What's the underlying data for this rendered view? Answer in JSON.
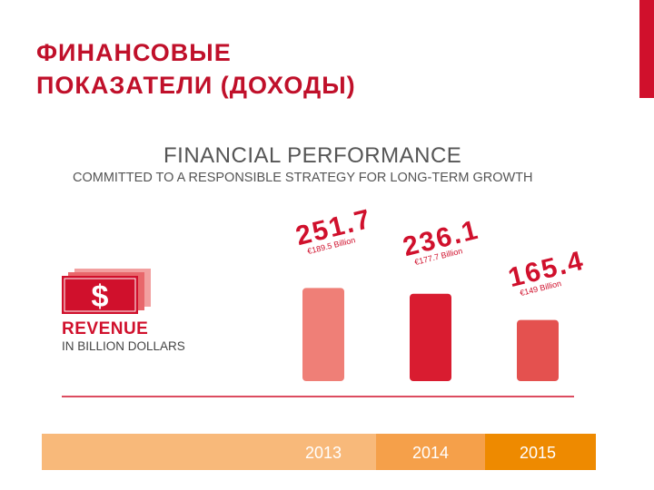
{
  "slide": {
    "title_line1": "ФИНАНСОВЫЕ",
    "title_line2": "ПОКАЗАТЕЛИ (ДОХОДЫ)",
    "accent_color": "#d0102c"
  },
  "infographic": {
    "title": "FINANCIAL PERFORMANCE",
    "subtitle": "COMMITTED TO A RESPONSIBLE STRATEGY FOR LONG-TERM GROWTH",
    "icon": "dollar-bills-icon",
    "metric_label": "REVENUE",
    "unit_label": "IN BILLION DOLLARS"
  },
  "chart_data": {
    "type": "bar",
    "categories": [
      "2013",
      "2014",
      "2015"
    ],
    "values": [
      251.7,
      236.1,
      165.4
    ],
    "value_labels": [
      "251.7",
      "236.1",
      "165.4"
    ],
    "euro_labels": [
      "€189.5 Billion",
      "€177.7 Billion",
      "€149 Billion"
    ],
    "bar_colors": [
      "#ef7f77",
      "#d91c30",
      "#e4514f"
    ],
    "category_band_colors": [
      "#f8b97a",
      "#f5a04a",
      "#ee8a00"
    ],
    "ylim": [
      0,
      260
    ],
    "grid": false,
    "title": "",
    "xlabel": "",
    "ylabel": ""
  }
}
